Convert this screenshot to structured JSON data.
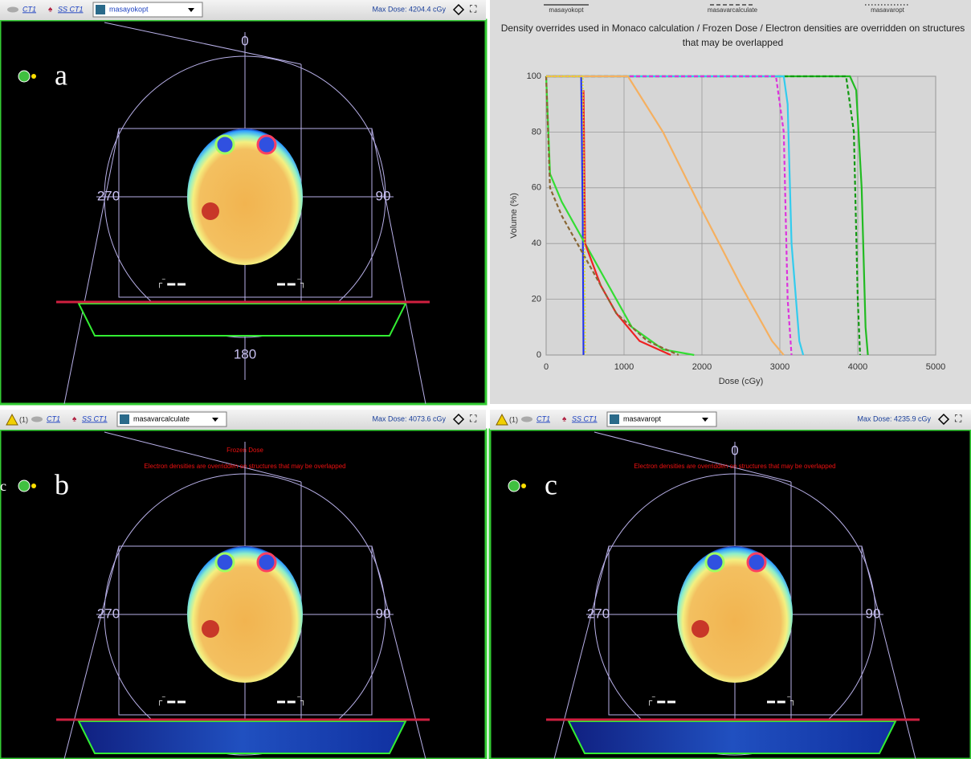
{
  "panels": [
    {
      "letter": "a",
      "primary": "CT1",
      "structure_set": "SS CT1",
      "plan": "masayokopt",
      "max_dose": "Max Dose: 4204.4 cGy",
      "angle_labels": {
        "top": "0",
        "left": "270",
        "right": "90",
        "bottom": "180"
      }
    },
    {
      "letter": "b",
      "alert_count": "(1)",
      "primary": "CT1",
      "structure_set": "SS CT1",
      "plan": "masavarcalculate",
      "max_dose": "Max Dose: 4073.6 cGy",
      "warnings": [
        "Frozen Dose",
        "Electron densities are overridden on structures that may be overlapped"
      ],
      "angle_labels": {
        "left": "270",
        "right": "90"
      },
      "stray_label": "c"
    },
    {
      "letter": "c",
      "alert_count": "(1)",
      "primary": "CT1",
      "structure_set": "SS CT1",
      "plan": "masavaropt",
      "max_dose": "Max Dose: 4235.9 cGy",
      "warnings": [
        "Electron densities are overridden on structures that may be overlapped"
      ],
      "angle_labels": {
        "top": "0",
        "left": "270",
        "right": "90"
      }
    }
  ],
  "chart_data": {
    "type": "line",
    "title": "Density overrides used in Monaco calculation / Frozen Dose / Electron densities are overridden on structures that may be overlapped",
    "x_label": "Dose (cGy)",
    "y_label": "Volume (%)",
    "legend": [
      {
        "label": "masayokopt",
        "dash": "solid"
      },
      {
        "label": "masavarcalculate",
        "dash": "dashed"
      },
      {
        "label": "masavaropt",
        "dash": "dotted"
      }
    ],
    "xlim": [
      0,
      5000
    ],
    "xticks": [
      0,
      1000,
      2000,
      3000,
      4000,
      5000
    ],
    "ylim": [
      0,
      100
    ],
    "yticks": [
      0,
      20,
      40,
      60,
      80,
      100
    ],
    "grid": true,
    "series": [
      {
        "color": "#2233ee",
        "dash": "solid",
        "x": [
          0,
          450,
          470,
          480
        ],
        "values": [
          100,
          100,
          50,
          0
        ]
      },
      {
        "color": "#22bb22",
        "dash": "solid",
        "x": [
          0,
          3900,
          3980,
          4050,
          4100,
          4130
        ],
        "values": [
          100,
          100,
          95,
          60,
          10,
          0
        ]
      },
      {
        "color": "#119911",
        "dash": "dashed",
        "x": [
          0,
          3850,
          3950,
          4000,
          4030
        ],
        "values": [
          100,
          100,
          80,
          20,
          0
        ]
      },
      {
        "color": "#33ccee",
        "dash": "solid",
        "x": [
          0,
          3050,
          3100,
          3150,
          3250,
          3300
        ],
        "values": [
          100,
          100,
          90,
          40,
          5,
          0
        ]
      },
      {
        "color": "#dd33dd",
        "dash": "dashed",
        "x": [
          0,
          2950,
          3050,
          3100,
          3150
        ],
        "values": [
          100,
          100,
          80,
          20,
          0
        ]
      },
      {
        "color": "#f5b060",
        "dash": "solid",
        "x": [
          0,
          1050,
          1500,
          2000,
          2500,
          2900,
          3050
        ],
        "values": [
          100,
          100,
          80,
          52,
          25,
          5,
          0
        ]
      },
      {
        "color": "#33dd33",
        "dash": "solid",
        "x": [
          0,
          50,
          200,
          400,
          500,
          800,
          1100,
          1500,
          1900
        ],
        "values": [
          100,
          65,
          55,
          45,
          40,
          25,
          10,
          2,
          0
        ]
      },
      {
        "color": "#ee2222",
        "dash": "solid",
        "x": [
          480,
          500,
          700,
          900,
          1200,
          1600
        ],
        "values": [
          95,
          40,
          25,
          15,
          5,
          0
        ]
      },
      {
        "color": "#886633",
        "dash": "dashed",
        "x": [
          0,
          50,
          200,
          400,
          600,
          900,
          1300,
          1700
        ],
        "values": [
          100,
          60,
          50,
          40,
          30,
          15,
          5,
          0
        ]
      },
      {
        "color": "#dddd22",
        "dash": "dotted",
        "x": [
          0,
          470,
          490,
          500
        ],
        "values": [
          100,
          100,
          50,
          0
        ]
      }
    ]
  }
}
